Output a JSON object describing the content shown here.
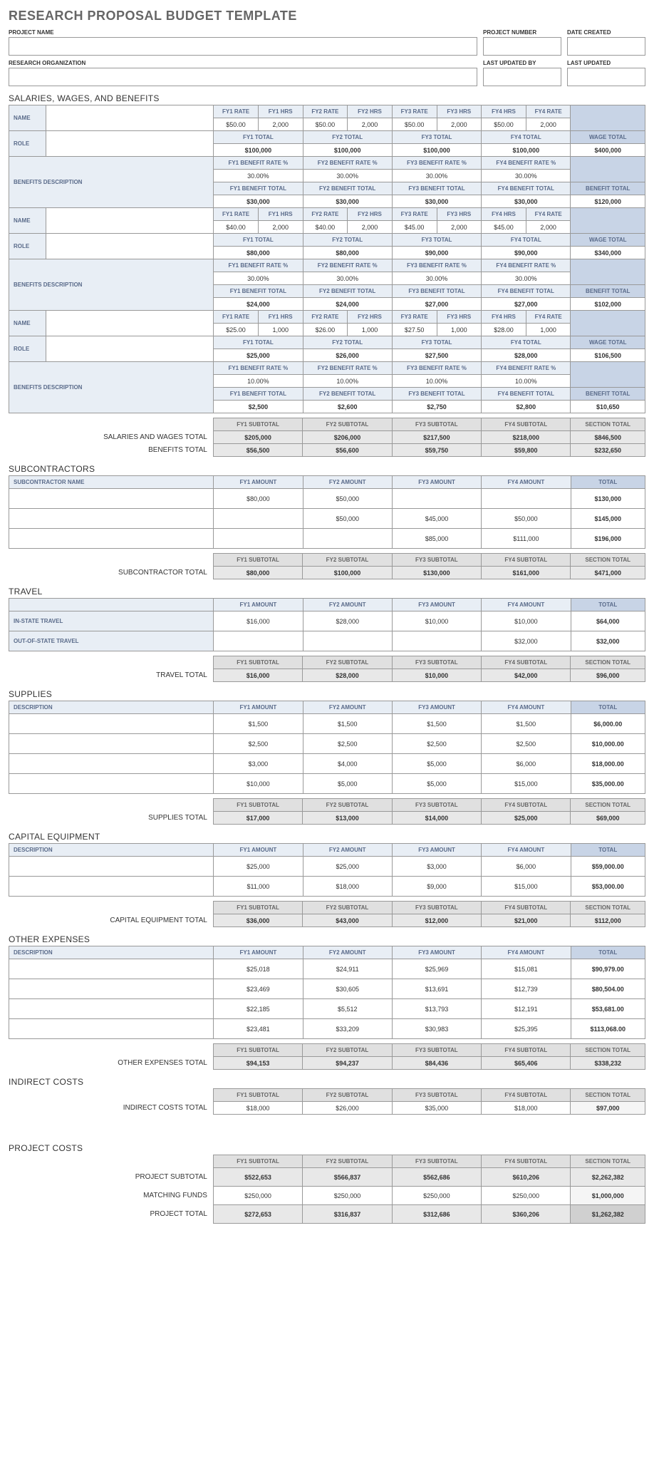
{
  "title": "RESEARCH PROPOSAL BUDGET TEMPLATE",
  "header": {
    "project_name_lbl": "PROJECT NAME",
    "project_number_lbl": "PROJECT NUMBER",
    "date_created_lbl": "DATE CREATED",
    "research_org_lbl": "RESEARCH ORGANIZATION",
    "last_updated_by_lbl": "LAST UPDATED BY",
    "last_updated_lbl": "LAST UPDATED"
  },
  "sect": {
    "salaries": "SALARIES, WAGES, AND BENEFITS",
    "subcontractors": "SUBCONTRACTORS",
    "travel": "TRAVEL",
    "supplies": "SUPPLIES",
    "capital": "CAPITAL EQUIPMENT",
    "other": "OTHER EXPENSES",
    "indirect": "INDIRECT COSTS",
    "project_costs": "PROJECT COSTS"
  },
  "lbl": {
    "name": "NAME",
    "role": "ROLE",
    "benefits_desc": "BENEFITS DESCRIPTION",
    "sub_name": "SUBCONTRACTOR NAME",
    "desc": "DESCRIPTION",
    "in_state": "IN-STATE TRAVEL",
    "out_state": "OUT-OF-STATE TRAVEL",
    "fy1_rate": "FY1 RATE",
    "fy1_hrs": "FY1 HRS",
    "fy2_rate": "FY2 RATE",
    "fy2_hrs": "FY2 HRS",
    "fy3_rate": "FY3 RATE",
    "fy3_hrs": "FY3 HRS",
    "fy4_hrs": "FY4 HRS",
    "fy4_rate": "FY4 RATE",
    "fy1_total": "FY1 TOTAL",
    "fy2_total": "FY2 TOTAL",
    "fy3_total": "FY3 TOTAL",
    "fy4_total": "FY4 TOTAL",
    "fy1_brate": "FY1 BENEFIT RATE %",
    "fy2_brate": "FY2 BENEFIT RATE %",
    "fy3_brate": "FY3 BENEFIT RATE %",
    "fy4_brate": "FY4 BENEFIT RATE %",
    "fy1_btotal": "FY1 BENEFIT TOTAL",
    "fy2_btotal": "FY2 BENEFIT TOTAL",
    "fy3_btotal": "FY3 BENEFIT TOTAL",
    "fy4_btotal": "FY4 BENEFIT TOTAL",
    "fy1_amt": "FY1 AMOUNT",
    "fy2_amt": "FY2 AMOUNT",
    "fy3_amt": "FY3 AMOUNT",
    "fy4_amt": "FY4 AMOUNT",
    "fy1_sub": "FY1 SUBTOTAL",
    "fy2_sub": "FY2 SUBTOTAL",
    "fy3_sub": "FY3 SUBTOTAL",
    "fy4_sub": "FY4 SUBTOTAL",
    "wage_total": "WAGE TOTAL",
    "benefit_total": "BENEFIT TOTAL",
    "total": "TOTAL",
    "section_total": "SECTION TOTAL",
    "sw_total": "SALARIES AND WAGES TOTAL",
    "b_total": "BENEFITS TOTAL",
    "sub_total": "SUBCONTRACTOR TOTAL",
    "travel_total": "TRAVEL TOTAL",
    "supplies_total": "SUPPLIES TOTAL",
    "capital_total": "CAPITAL EQUIPMENT TOTAL",
    "other_total": "OTHER EXPENSES TOTAL",
    "indirect_total": "INDIRECT COSTS TOTAL",
    "proj_subtotal": "PROJECT SUBTOTAL",
    "matching": "MATCHING FUNDS",
    "proj_total": "PROJECT TOTAL"
  },
  "sal": [
    {
      "rate_hrs": [
        "$50.00",
        "2,000",
        "$50.00",
        "2,000",
        "$50.00",
        "2,000",
        "$50.00",
        "2,000"
      ],
      "fy_totals": [
        "$100,000",
        "$100,000",
        "$100,000",
        "$100,000"
      ],
      "wage_total": "$400,000",
      "brates": [
        "30.00%",
        "30.00%",
        "30.00%",
        "30.00%"
      ],
      "btotals": [
        "$30,000",
        "$30,000",
        "$30,000",
        "$30,000"
      ],
      "benefit_total": "$120,000"
    },
    {
      "rate_hrs": [
        "$40.00",
        "2,000",
        "$40.00",
        "2,000",
        "$45.00",
        "2,000",
        "$45.00",
        "2,000"
      ],
      "fy_totals": [
        "$80,000",
        "$80,000",
        "$90,000",
        "$90,000"
      ],
      "wage_total": "$340,000",
      "brates": [
        "30.00%",
        "30.00%",
        "30.00%",
        "30.00%"
      ],
      "btotals": [
        "$24,000",
        "$24,000",
        "$27,000",
        "$27,000"
      ],
      "benefit_total": "$102,000"
    },
    {
      "rate_hrs": [
        "$25.00",
        "1,000",
        "$26.00",
        "1,000",
        "$27.50",
        "1,000",
        "$28.00",
        "1,000"
      ],
      "fy_totals": [
        "$25,000",
        "$26,000",
        "$27,500",
        "$28,000"
      ],
      "wage_total": "$106,500",
      "brates": [
        "10.00%",
        "10.00%",
        "10.00%",
        "10.00%"
      ],
      "btotals": [
        "$2,500",
        "$2,600",
        "$2,750",
        "$2,800"
      ],
      "benefit_total": "$10,650"
    }
  ],
  "sal_totals": {
    "sw": [
      "$205,000",
      "$206,000",
      "$217,500",
      "$218,000",
      "$846,500"
    ],
    "b": [
      "$56,500",
      "$56,600",
      "$59,750",
      "$59,800",
      "$232,650"
    ]
  },
  "subcon": {
    "rows": [
      [
        "$80,000",
        "$50,000",
        "",
        "",
        "$130,000"
      ],
      [
        "",
        "$50,000",
        "$45,000",
        "$50,000",
        "$145,000"
      ],
      [
        "",
        "",
        "$85,000",
        "$111,000",
        "$196,000"
      ]
    ],
    "total": [
      "$80,000",
      "$100,000",
      "$130,000",
      "$161,000",
      "$471,000"
    ]
  },
  "travel": {
    "rows": [
      {
        "lbl": "in_state",
        "v": [
          "$16,000",
          "$28,000",
          "$10,000",
          "$10,000",
          "$64,000"
        ]
      },
      {
        "lbl": "out_state",
        "v": [
          "",
          "",
          "",
          "$32,000",
          "$32,000"
        ]
      }
    ],
    "total": [
      "$16,000",
      "$28,000",
      "$10,000",
      "$42,000",
      "$96,000"
    ]
  },
  "supplies": {
    "rows": [
      [
        "$1,500",
        "$1,500",
        "$1,500",
        "$1,500",
        "$6,000.00"
      ],
      [
        "$2,500",
        "$2,500",
        "$2,500",
        "$2,500",
        "$10,000.00"
      ],
      [
        "$3,000",
        "$4,000",
        "$5,000",
        "$6,000",
        "$18,000.00"
      ],
      [
        "$10,000",
        "$5,000",
        "$5,000",
        "$15,000",
        "$35,000.00"
      ]
    ],
    "total": [
      "$17,000",
      "$13,000",
      "$14,000",
      "$25,000",
      "$69,000"
    ]
  },
  "capital": {
    "rows": [
      [
        "$25,000",
        "$25,000",
        "$3,000",
        "$6,000",
        "$59,000.00"
      ],
      [
        "$11,000",
        "$18,000",
        "$9,000",
        "$15,000",
        "$53,000.00"
      ]
    ],
    "total": [
      "$36,000",
      "$43,000",
      "$12,000",
      "$21,000",
      "$112,000"
    ]
  },
  "other": {
    "rows": [
      [
        "$25,018",
        "$24,911",
        "$25,969",
        "$15,081",
        "$90,979.00"
      ],
      [
        "$23,469",
        "$30,605",
        "$13,691",
        "$12,739",
        "$80,504.00"
      ],
      [
        "$22,185",
        "$5,512",
        "$13,793",
        "$12,191",
        "$53,681.00"
      ],
      [
        "$23,481",
        "$33,209",
        "$30,983",
        "$25,395",
        "$113,068.00"
      ]
    ],
    "total": [
      "$94,153",
      "$94,237",
      "$84,436",
      "$65,406",
      "$338,232"
    ]
  },
  "indirect": {
    "total": [
      "$18,000",
      "$26,000",
      "$35,000",
      "$18,000",
      "$97,000"
    ]
  },
  "project": {
    "subtotal": [
      "$522,653",
      "$566,837",
      "$562,686",
      "$610,206",
      "$2,262,382"
    ],
    "matching": [
      "$250,000",
      "$250,000",
      "$250,000",
      "$250,000",
      "$1,000,000"
    ],
    "total": [
      "$272,653",
      "$316,837",
      "$312,686",
      "$360,206",
      "$1,262,382"
    ]
  }
}
